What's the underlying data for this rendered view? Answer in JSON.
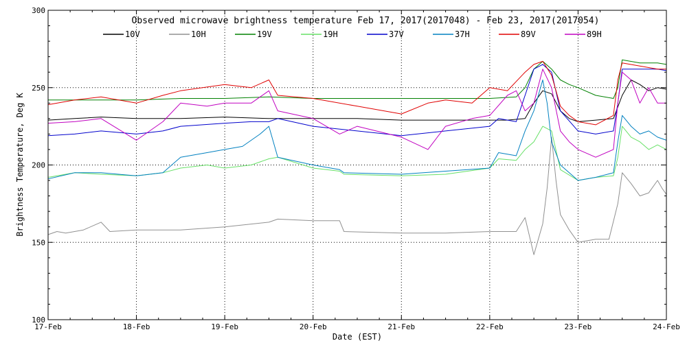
{
  "chart_data": {
    "type": "line",
    "title": "Observed microwave brightness temperature Feb 17, 2017(2017048) - Feb 23, 2017(2017054)",
    "xlabel": "Date (EST)",
    "ylabel": "Brightness Temperature, Deg K",
    "xlim": [
      0,
      7
    ],
    "ylim": [
      100,
      300
    ],
    "categories": [
      "17-Feb",
      "18-Feb",
      "19-Feb",
      "20-Feb",
      "21-Feb",
      "22-Feb",
      "23-Feb",
      "24-Feb"
    ],
    "x_tick_values": [
      0,
      1,
      2,
      3,
      4,
      5,
      6,
      7
    ],
    "y_ticks": [
      100,
      150,
      200,
      250,
      300
    ],
    "grid": "dotted at major ticks",
    "legend_position": "top",
    "series": [
      {
        "name": "10V",
        "color": "#000000",
        "x": [
          0,
          0.3,
          0.6,
          1,
          1.5,
          2,
          2.5,
          3,
          3.5,
          4,
          4.5,
          5,
          5.2,
          5.4,
          5.5,
          5.6,
          5.7,
          5.8,
          5.9,
          6.0,
          6.2,
          6.4,
          6.5,
          6.6,
          6.7,
          6.8,
          6.9,
          7.0
        ],
        "y": [
          229,
          230,
          231,
          230,
          230,
          231,
          230,
          230,
          230,
          229,
          229,
          229,
          229,
          230,
          240,
          248,
          246,
          235,
          230,
          228,
          229,
          230,
          245,
          255,
          252,
          248,
          250,
          249
        ]
      },
      {
        "name": "10H",
        "color": "#909090",
        "x": [
          0,
          0.1,
          0.2,
          0.4,
          0.6,
          0.7,
          1,
          1.5,
          2,
          2.5,
          2.6,
          3,
          3.3,
          3.35,
          4,
          4.5,
          5,
          5.3,
          5.4,
          5.5,
          5.6,
          5.65,
          5.7,
          5.75,
          5.8,
          5.9,
          6.0,
          6.2,
          6.35,
          6.45,
          6.5,
          6.6,
          6.7,
          6.8,
          6.9,
          6.95,
          7.0
        ],
        "y": [
          155,
          157,
          156,
          158,
          163,
          157,
          158,
          158,
          160,
          163,
          165,
          164,
          164,
          157,
          156,
          156,
          157,
          157,
          166,
          142,
          162,
          185,
          218,
          190,
          168,
          158,
          150,
          152,
          152,
          175,
          195,
          188,
          180,
          182,
          190,
          185,
          181
        ]
      },
      {
        "name": "19V",
        "color": "#008000",
        "x": [
          0,
          0.5,
          1,
          1.5,
          2,
          2.5,
          3,
          3.5,
          4,
          4.5,
          5,
          5.3,
          5.4,
          5.5,
          5.6,
          5.7,
          5.8,
          5.9,
          6.0,
          6.2,
          6.4,
          6.45,
          6.5,
          6.7,
          6.9,
          7.0
        ],
        "y": [
          242,
          242,
          242,
          243,
          243,
          244,
          243,
          243,
          243,
          243,
          243,
          244,
          250,
          262,
          267,
          262,
          255,
          252,
          250,
          245,
          243,
          250,
          268,
          266,
          266,
          265
        ]
      },
      {
        "name": "19H",
        "color": "#66e066",
        "x": [
          0,
          0.3,
          0.6,
          1,
          1.3,
          1.5,
          1.8,
          2,
          2.3,
          2.5,
          2.6,
          3,
          3.3,
          3.35,
          4,
          4.5,
          5,
          5.1,
          5.3,
          5.4,
          5.5,
          5.6,
          5.7,
          5.8,
          6.0,
          6.2,
          6.4,
          6.45,
          6.5,
          6.6,
          6.7,
          6.8,
          6.9,
          7.0
        ],
        "y": [
          192,
          195,
          194,
          193,
          195,
          198,
          200,
          198,
          200,
          204,
          205,
          198,
          196,
          194,
          193,
          194,
          198,
          204,
          203,
          210,
          215,
          225,
          222,
          197,
          190,
          192,
          193,
          205,
          225,
          218,
          215,
          210,
          213,
          210
        ]
      },
      {
        "name": "37V",
        "color": "#0000cc",
        "x": [
          0,
          0.3,
          0.6,
          1,
          1.3,
          1.5,
          2,
          2.3,
          2.5,
          2.6,
          3,
          3.5,
          4,
          4.5,
          5,
          5.1,
          5.3,
          5.4,
          5.5,
          5.6,
          5.7,
          5.8,
          6.0,
          6.2,
          6.4,
          6.45,
          6.5,
          6.6,
          6.7,
          6.8,
          6.9,
          7.0
        ],
        "y": [
          219,
          220,
          222,
          220,
          222,
          225,
          227,
          228,
          228,
          230,
          225,
          222,
          219,
          222,
          225,
          230,
          228,
          245,
          262,
          265,
          260,
          235,
          222,
          220,
          222,
          240,
          262,
          262,
          262,
          262,
          262,
          261
        ]
      },
      {
        "name": "37H",
        "color": "#0080c0",
        "x": [
          0,
          0.3,
          0.6,
          1,
          1.3,
          1.5,
          1.8,
          2,
          2.2,
          2.4,
          2.5,
          2.6,
          3,
          3.3,
          3.35,
          4,
          4.5,
          5,
          5.1,
          5.3,
          5.4,
          5.5,
          5.6,
          5.65,
          5.7,
          5.8,
          6.0,
          6.2,
          6.4,
          6.45,
          6.5,
          6.6,
          6.7,
          6.8,
          6.9,
          7.0
        ],
        "y": [
          191,
          195,
          195,
          193,
          195,
          205,
          208,
          210,
          212,
          220,
          225,
          205,
          200,
          197,
          195,
          194,
          196,
          198,
          208,
          206,
          222,
          235,
          255,
          240,
          215,
          200,
          190,
          192,
          195,
          215,
          232,
          225,
          220,
          222,
          218,
          216
        ]
      },
      {
        "name": "89V",
        "color": "#e00000",
        "x": [
          0,
          0.3,
          0.6,
          1,
          1.3,
          1.5,
          2,
          2.3,
          2.5,
          2.6,
          3,
          3.5,
          4,
          4.3,
          4.5,
          4.8,
          5,
          5.2,
          5.4,
          5.5,
          5.6,
          5.7,
          5.8,
          5.9,
          6.0,
          6.2,
          6.4,
          6.45,
          6.5,
          6.7,
          6.9,
          7.0
        ],
        "y": [
          239,
          242,
          244,
          240,
          245,
          248,
          252,
          250,
          255,
          245,
          243,
          238,
          233,
          240,
          242,
          240,
          250,
          248,
          260,
          265,
          267,
          258,
          238,
          232,
          228,
          226,
          232,
          255,
          266,
          264,
          262,
          262
        ]
      },
      {
        "name": "89H",
        "color": "#c000c0",
        "x": [
          0,
          0.3,
          0.6,
          1,
          1.3,
          1.5,
          1.8,
          2,
          2.3,
          2.5,
          2.6,
          3,
          3.3,
          3.5,
          4,
          4.3,
          4.5,
          4.8,
          5,
          5.2,
          5.3,
          5.4,
          5.5,
          5.6,
          5.7,
          5.8,
          5.9,
          6.0,
          6.2,
          6.4,
          6.45,
          6.5,
          6.6,
          6.7,
          6.8,
          6.9,
          7.0
        ],
        "y": [
          227,
          228,
          230,
          216,
          228,
          240,
          238,
          240,
          240,
          248,
          235,
          230,
          220,
          225,
          218,
          210,
          225,
          230,
          232,
          245,
          248,
          235,
          240,
          262,
          250,
          222,
          215,
          210,
          205,
          210,
          240,
          260,
          255,
          240,
          250,
          240,
          240
        ]
      }
    ]
  }
}
